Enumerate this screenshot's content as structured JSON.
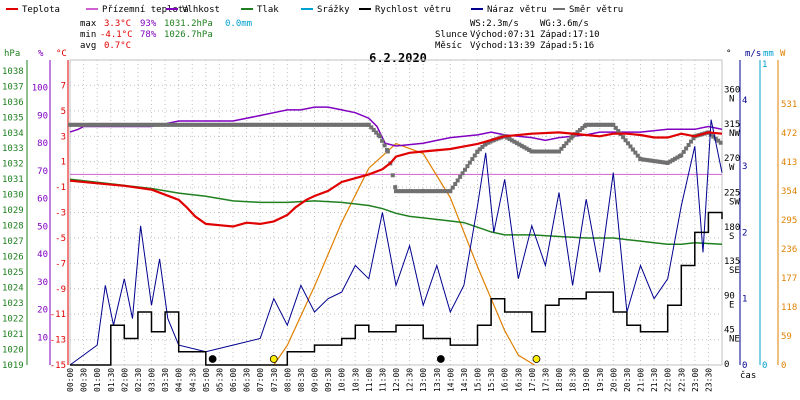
{
  "legend": [
    {
      "label": "Teplota",
      "color": "#e00000"
    },
    {
      "label": "Přízemní teplota",
      "color": "#d060d0"
    },
    {
      "label": "Vlhkost",
      "color": "#8000c0"
    },
    {
      "label": "Tlak",
      "color": "#208020"
    },
    {
      "label": "Srážky",
      "color": "#00a0d0"
    },
    {
      "label": "Rychlost větru",
      "color": "#000000"
    },
    {
      "label": "Náraz větru",
      "color": "#000090"
    },
    {
      "label": "Směr větru",
      "color": "#707070"
    }
  ],
  "stats": {
    "max_label": "max",
    "max_temp": "3.3°C",
    "max_hum": "93%",
    "max_press": "1031.2hPa",
    "max_rain": "0.0mm",
    "min_label": "min",
    "min_temp": "-4.1°C",
    "min_hum": "78%",
    "min_press": "1026.7hPa",
    "avg_label": "avg",
    "avg_temp": "0.7°C"
  },
  "astro": {
    "ws": "WS:2.3m/s",
    "wg": "WG:3.6m/s",
    "sun_label": "Slunce",
    "sunrise": "Východ:07:31",
    "sunset": "Západ:17:10",
    "moon_label": "Měsíc",
    "moonrise": "Východ:13:39",
    "moonset": "Západ:5:16"
  },
  "chart_data": {
    "type": "line",
    "title": "6.2.2020",
    "xlabel": "čas",
    "x_ticks": [
      "00:00",
      "00:30",
      "01:00",
      "01:30",
      "02:00",
      "02:30",
      "03:00",
      "03:30",
      "04:00",
      "04:30",
      "05:00",
      "05:30",
      "06:00",
      "06:30",
      "07:00",
      "07:30",
      "08:00",
      "08:30",
      "09:00",
      "09:30",
      "10:00",
      "10:30",
      "11:00",
      "11:30",
      "12:00",
      "12:30",
      "13:00",
      "13:30",
      "14:00",
      "14:30",
      "15:00",
      "15:30",
      "16:00",
      "16:30",
      "17:00",
      "17:30",
      "18:00",
      "18:30",
      "19:00",
      "19:30",
      "20:00",
      "20:30",
      "21:00",
      "21:30",
      "22:00",
      "22:30",
      "23:00",
      "23:30"
    ],
    "axes": {
      "pressure": {
        "unit": "hPa",
        "ticks": [
          "1038",
          "1037",
          "1036",
          "1035",
          "1034",
          "1033",
          "1032",
          "1031",
          "1030",
          "1029",
          "1028",
          "1027",
          "1026",
          "1025",
          "1024",
          "1023",
          "1022",
          "1021",
          "1020",
          "1019"
        ]
      },
      "humidity": {
        "unit": "%",
        "ticks": [
          "100",
          "90",
          "80",
          "70",
          "60",
          "50",
          "40",
          "30",
          "20",
          "10"
        ]
      },
      "temperature": {
        "unit": "°C",
        "ticks": [
          "7",
          "5",
          "3",
          "1",
          "-1",
          "-3",
          "-5",
          "-7",
          "-9",
          "-11",
          "-13",
          "-15"
        ]
      },
      "direction": {
        "unit": "°",
        "ticks": [
          "360",
          "315",
          "270",
          "225",
          "180",
          "135",
          "90",
          "45",
          "0"
        ],
        "compass": [
          "N",
          "NW",
          "W",
          "SW",
          "S",
          "SE",
          "E",
          "NE"
        ]
      },
      "wind": {
        "unit": "m/s",
        "ticks": [
          "4",
          "3",
          "2",
          "1",
          "0"
        ]
      },
      "rain": {
        "unit": "mm",
        "ticks": [
          "1",
          "0"
        ]
      },
      "solar": {
        "unit": "W",
        "ticks": [
          "531",
          "472",
          "413",
          "354",
          "295",
          "236",
          "177",
          "118",
          "59",
          "0"
        ]
      }
    },
    "temperature_series": {
      "name": "Teplota",
      "x": [
        0,
        1,
        2,
        3,
        3.5,
        4,
        4.3,
        4.6,
        5,
        5.5,
        6,
        6.5,
        7,
        7.5,
        8,
        8.3,
        8.7,
        9,
        9.5,
        10,
        10.5,
        11,
        11.5,
        11.8,
        12,
        12.5,
        13,
        14,
        14.5,
        15,
        15.5,
        16,
        17,
        18,
        19,
        19.5,
        20,
        20.5,
        21,
        21.5,
        22,
        22.5,
        23,
        23.5,
        24
      ],
      "y": [
        -0.5,
        -0.7,
        -0.9,
        -1.2,
        -1.6,
        -2.0,
        -2.6,
        -3.3,
        -3.9,
        -4.0,
        -4.1,
        -3.8,
        -3.9,
        -3.7,
        -3.2,
        -2.6,
        -2.0,
        -1.7,
        -1.3,
        -0.6,
        -0.3,
        0.0,
        0.4,
        0.9,
        1.4,
        1.7,
        1.8,
        2.0,
        2.2,
        2.4,
        2.7,
        3.0,
        3.2,
        3.3,
        3.1,
        3.0,
        3.2,
        3.2,
        3.1,
        2.9,
        2.9,
        3.2,
        3.0,
        3.3,
        3.2
      ]
    },
    "humidity_series": {
      "name": "Vlhkost",
      "x": [
        0,
        0.3,
        0.5,
        1,
        1.5,
        2,
        2.5,
        3,
        3.5,
        4,
        5,
        6,
        7,
        7.5,
        8,
        8.5,
        9,
        9.5,
        10,
        10.5,
        11,
        11.3,
        11.6,
        12,
        13,
        13.5,
        14,
        15,
        15.5,
        16,
        17,
        17.5,
        18,
        19,
        19.5,
        20,
        21,
        22,
        22.5,
        23,
        23.5,
        24
      ],
      "y": [
        84,
        85,
        86,
        86,
        86,
        86,
        86,
        86,
        87,
        88,
        88,
        88,
        90,
        91,
        92,
        92,
        93,
        93,
        92,
        91,
        89,
        86,
        80,
        79,
        80,
        81,
        82,
        83,
        84,
        83,
        82,
        81,
        82,
        83,
        84,
        84,
        84,
        85,
        85,
        85,
        86,
        85
      ]
    },
    "pressure_series": {
      "name": "Tlak",
      "x": [
        0,
        1,
        2,
        3,
        4,
        5,
        6,
        7,
        8,
        9,
        10,
        11,
        11.5,
        12,
        12.5,
        13,
        14,
        14.5,
        15,
        15.5,
        16,
        17,
        18,
        19,
        20,
        20.5,
        21,
        21.5,
        22,
        22.5,
        23,
        24
      ],
      "y": [
        1031.0,
        1030.8,
        1030.6,
        1030.4,
        1030.1,
        1029.9,
        1029.6,
        1029.5,
        1029.5,
        1029.6,
        1029.5,
        1029.3,
        1029.1,
        1028.8,
        1028.6,
        1028.5,
        1028.3,
        1028.2,
        1027.9,
        1027.6,
        1027.4,
        1027.4,
        1027.3,
        1027.2,
        1027.2,
        1027.1,
        1027.0,
        1026.9,
        1026.8,
        1026.8,
        1026.9,
        1026.8
      ]
    },
    "direction_series": {
      "name": "Směr větru",
      "x": [
        0,
        11,
        11.4,
        11.7,
        12,
        13,
        14,
        15,
        15.3,
        15.6,
        16,
        17,
        18,
        18.5,
        19,
        19.5,
        20,
        21,
        22,
        22.5,
        23,
        23.5,
        24
      ],
      "y": [
        315,
        315,
        300,
        280,
        228,
        228,
        228,
        280,
        290,
        295,
        300,
        280,
        280,
        300,
        315,
        315,
        315,
        270,
        265,
        275,
        300,
        305,
        290
      ]
    },
    "wind_speed_series": {
      "name": "Rychlost větru",
      "x": [
        0,
        1,
        1.5,
        2,
        2.5,
        3,
        3.5,
        4,
        5,
        6,
        7,
        8,
        9,
        10,
        10.5,
        11,
        12,
        13,
        14,
        15,
        15.5,
        16,
        17,
        17.5,
        18,
        19,
        20,
        20.5,
        21,
        22,
        22.5,
        23,
        23.5,
        24
      ],
      "y": [
        0,
        0,
        0.6,
        0.4,
        0.8,
        0.5,
        0.8,
        0.2,
        0,
        0,
        0,
        0.2,
        0.3,
        0.4,
        0.6,
        0.5,
        0.6,
        0.4,
        0.3,
        0.6,
        1.0,
        0.8,
        0.5,
        0.9,
        1.0,
        1.1,
        0.8,
        0.6,
        0.5,
        0.9,
        1.5,
        2.0,
        2.3,
        2.2
      ]
    },
    "wind_gust_series": {
      "name": "Náraz větru",
      "x": [
        0,
        1,
        1.3,
        1.6,
        2,
        2.3,
        2.6,
        3,
        3.3,
        3.6,
        4,
        5,
        6,
        7,
        7.5,
        8,
        8.5,
        9,
        9.5,
        10,
        10.5,
        11,
        11.5,
        12,
        12.5,
        13,
        13.5,
        14,
        14.5,
        15,
        15.3,
        15.6,
        16,
        16.5,
        17,
        17.5,
        18,
        18.5,
        19,
        19.5,
        20,
        20.5,
        21,
        21.5,
        22,
        22.5,
        23,
        23.3,
        23.6,
        24
      ],
      "y": [
        0,
        0.3,
        1.2,
        0.6,
        1.3,
        0.7,
        2.1,
        0.9,
        1.6,
        0.7,
        0.3,
        0.2,
        0.3,
        0.4,
        1.0,
        0.6,
        1.2,
        0.8,
        1.0,
        1.1,
        1.5,
        1.3,
        2.3,
        1.2,
        1.8,
        0.9,
        1.5,
        0.8,
        1.2,
        2.4,
        3.2,
        2.0,
        2.8,
        1.3,
        2.1,
        1.5,
        2.6,
        1.2,
        2.5,
        1.4,
        2.9,
        0.8,
        1.5,
        1.0,
        1.3,
        2.4,
        3.3,
        1.7,
        3.7,
        2.9
      ]
    },
    "solar_series": {
      "name": "Sluneční záření",
      "x": [
        7.5,
        8,
        9,
        10,
        11,
        12,
        13,
        14,
        15,
        16,
        16.5,
        17.1
      ],
      "y": [
        0,
        40,
        160,
        290,
        400,
        450,
        430,
        340,
        200,
        70,
        20,
        0
      ]
    },
    "markers": [
      {
        "type": "moon",
        "x": 5.25,
        "color": "#000000"
      },
      {
        "type": "sun",
        "x": 7.5,
        "color": "#ffee00"
      },
      {
        "type": "moon",
        "x": 13.65,
        "color": "#000000"
      },
      {
        "type": "sun",
        "x": 17.17,
        "color": "#ffee00"
      }
    ]
  }
}
